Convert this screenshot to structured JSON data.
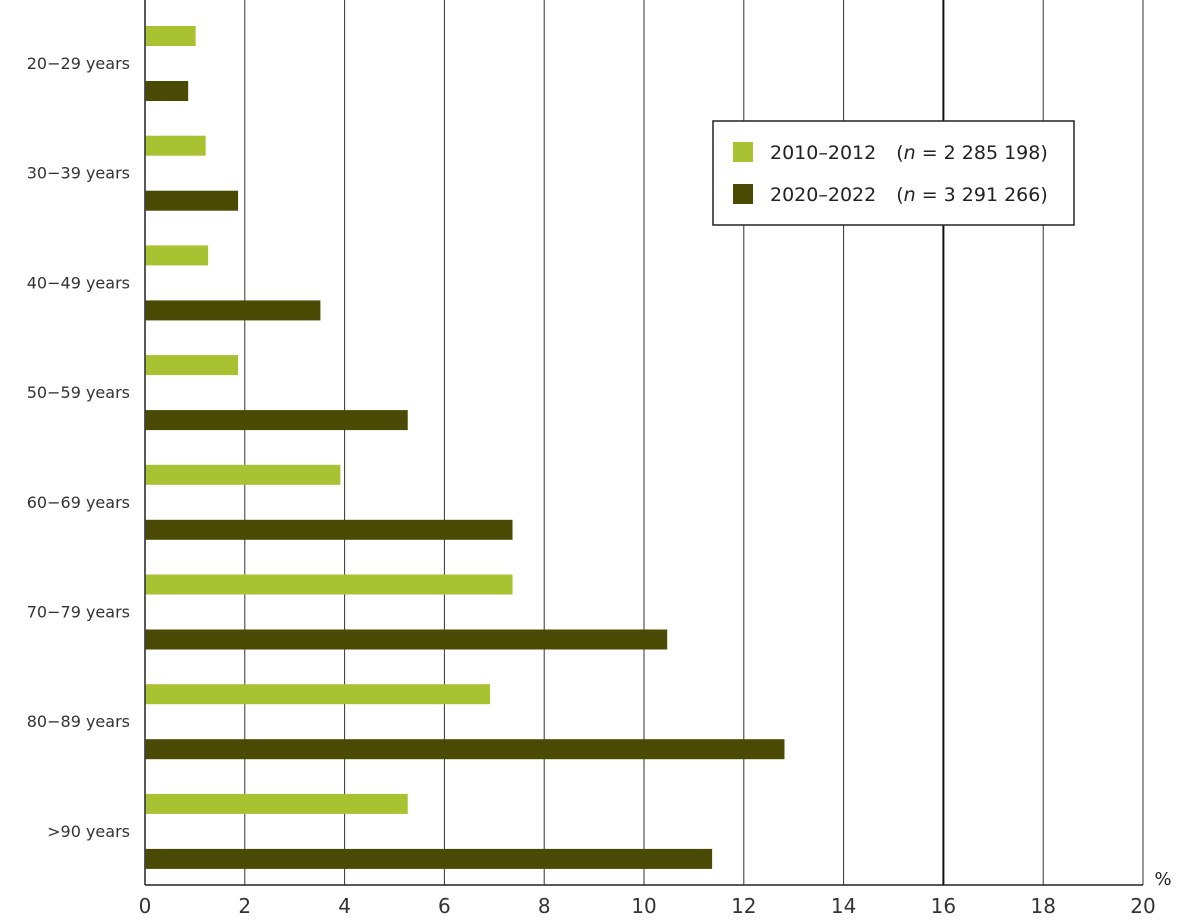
{
  "chart_data": {
    "type": "bar",
    "orientation": "horizontal",
    "categories": [
      "20−29 years",
      "30−39 years",
      "40−49 years",
      "50−59 years",
      "60−69 years",
      "70−79 years",
      "80−89 years",
      ">90 years"
    ],
    "series": [
      {
        "name": "2010–2012",
        "n_label": "n",
        "n_value": "= 2 285 198)",
        "prefix": "(",
        "color": "#a9c232",
        "values": [
          1.0,
          1.2,
          1.25,
          1.85,
          3.9,
          7.35,
          6.9,
          5.25
        ]
      },
      {
        "name": "2020–2022",
        "n_label": "n",
        "n_value": "= 3 291 266)",
        "prefix": "(",
        "color": "#4a4a05",
        "values": [
          0.85,
          1.85,
          3.5,
          5.25,
          7.35,
          10.45,
          12.8,
          11.35
        ]
      }
    ],
    "x_ticks": [
      "0",
      "2",
      "4",
      "6",
      "8",
      "10",
      "12",
      "14",
      "16",
      "18",
      "20"
    ],
    "xlim": [
      0,
      20
    ],
    "x_unit": "%",
    "xlabel": "",
    "ylabel": "",
    "title": "",
    "grid": true,
    "emphasized_gridline": 16,
    "legend_position": "upper-right"
  }
}
